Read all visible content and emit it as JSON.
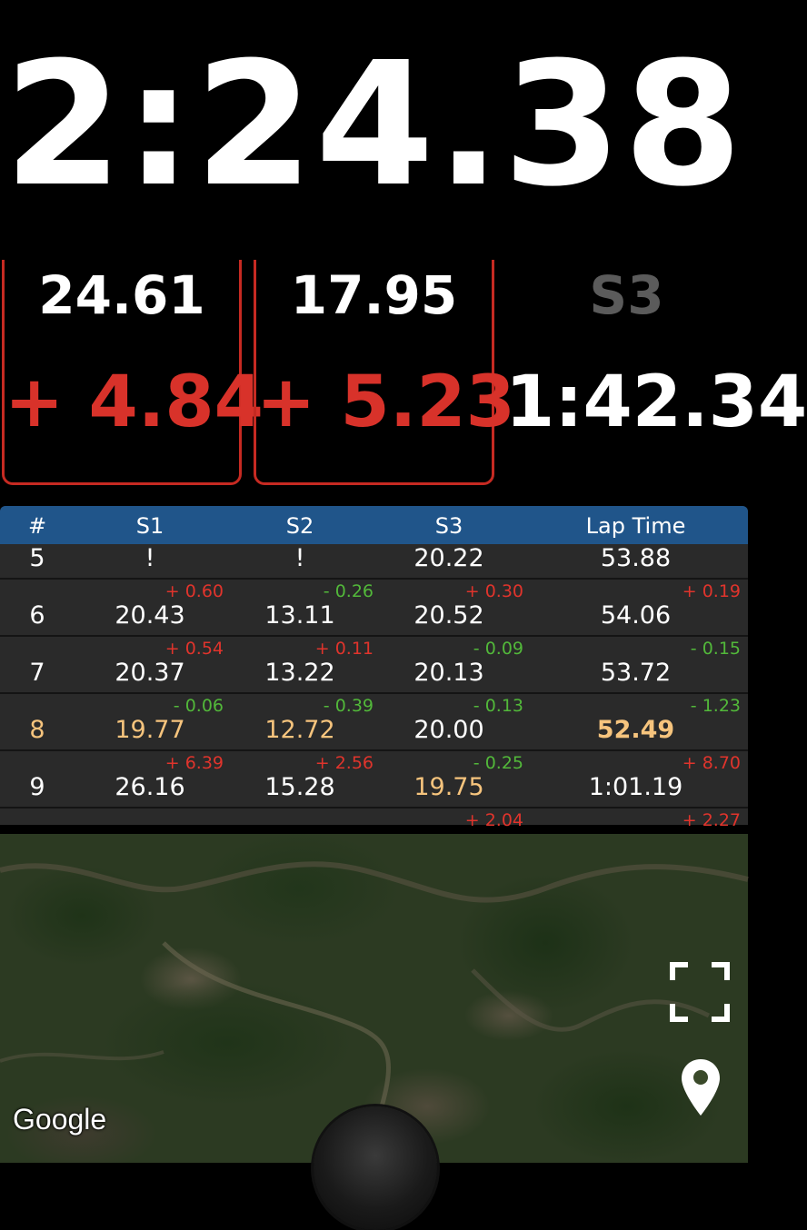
{
  "timer": {
    "current": "2:24.38"
  },
  "sectors": [
    {
      "time": "24.61",
      "delta": "+ 4.84"
    },
    {
      "time": "17.95",
      "delta": "+ 5.23"
    },
    {
      "label": "S3",
      "time": "1:42.34"
    }
  ],
  "table": {
    "headers": [
      "#",
      "S1",
      "S2",
      "S3",
      "Lap Time"
    ],
    "rows": [
      {
        "lap": "5",
        "s1": "!",
        "s2": "!",
        "s3": "20.22",
        "lap_time": "53.88",
        "d_s1": "",
        "d_s2": "",
        "d_s3": "",
        "d_lap": ""
      },
      {
        "lap": "6",
        "s1": "20.43",
        "s2": "13.11",
        "s3": "20.52",
        "lap_time": "54.06",
        "d_s1": "+ 0.60",
        "d_s2": "- 0.26",
        "d_s3": "+ 0.30",
        "d_lap": "+ 0.19"
      },
      {
        "lap": "7",
        "s1": "20.37",
        "s2": "13.22",
        "s3": "20.13",
        "lap_time": "53.72",
        "d_s1": "+ 0.54",
        "d_s2": "+ 0.11",
        "d_s3": "- 0.09",
        "d_lap": "- 0.15"
      },
      {
        "lap": "8",
        "s1": "19.77",
        "s2": "12.72",
        "s3": "20.00",
        "lap_time": "52.49",
        "d_s1": "- 0.06",
        "d_s2": "- 0.39",
        "d_s3": "- 0.13",
        "d_lap": "- 1.23"
      },
      {
        "lap": "9",
        "s1": "26.16",
        "s2": "15.28",
        "s3": "19.75",
        "lap_time": "1:01.19",
        "d_s1": "+ 6.39",
        "d_s2": "+ 2.56",
        "d_s3": "- 0.25",
        "d_lap": "+ 8.70"
      },
      {
        "lap": "",
        "s1": "",
        "s2": "",
        "s3": "",
        "lap_time": "",
        "d_s1": "",
        "d_s2": "",
        "d_s3": "+ 2.04",
        "d_lap": "+ 2.27"
      }
    ]
  },
  "map": {
    "attribution": "Google"
  },
  "icons": {
    "fullscreen": "fullscreen-icon",
    "location": "location-pin-icon"
  },
  "colors": {
    "delta_positive": "#e0342c",
    "delta_negative": "#52b83a",
    "best": "#f6c47d",
    "sector_box": "#c62a22",
    "header": "#20558a"
  }
}
